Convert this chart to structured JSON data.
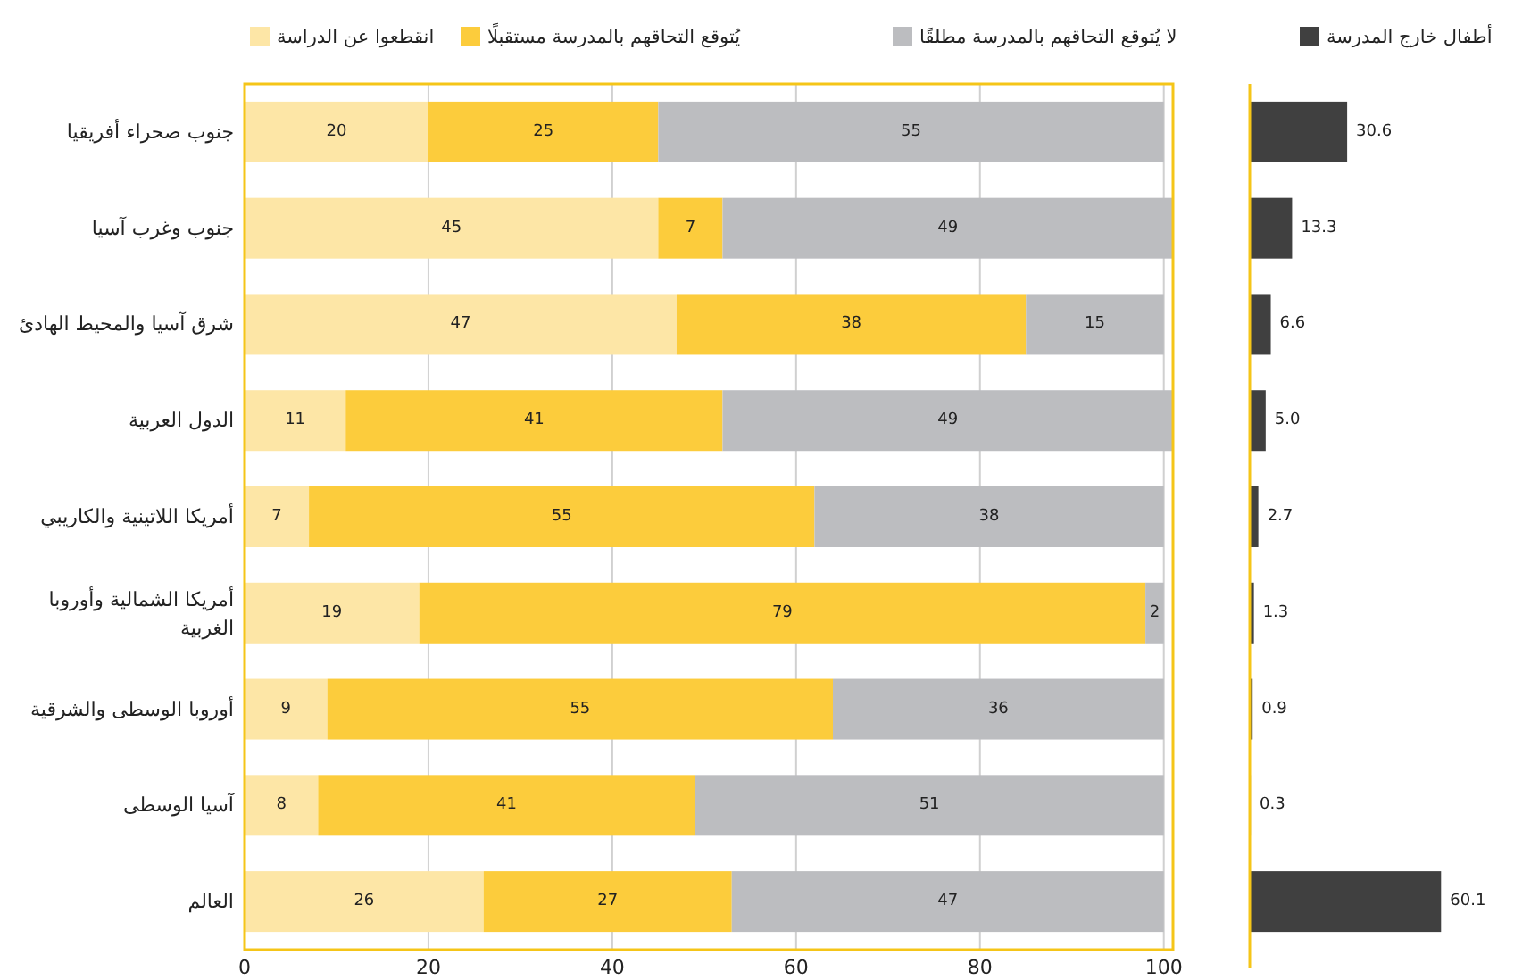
{
  "chart_data": [
    {
      "type": "bar",
      "orientation": "horizontal",
      "stacked": true,
      "categories": [
        "جنوب صحراء أفريقيا",
        "جنوب وغرب آسيا",
        "شرق آسيا والمحيط الهادئ",
        "الدول العربية",
        "أمريكا اللاتينية والكاريبي",
        "أمريكا الشمالية وأوروبا الغربية",
        "أوروبا الوسطى والشرقية",
        "آسيا الوسطى",
        "العالم"
      ],
      "series": [
        {
          "name": "انقطعوا عن الدراسة",
          "color": "#fde6a6",
          "values": [
            20,
            45,
            47,
            11,
            7,
            19,
            9,
            8,
            26
          ]
        },
        {
          "name": "يُتوقع التحاقهم بالمدرسة مستقبلًا",
          "color": "#fccc3c",
          "values": [
            25,
            7,
            38,
            41,
            55,
            79,
            55,
            41,
            27
          ]
        },
        {
          "name": "لا يُتوقع التحاقهم بالمدرسة مطلقًا",
          "color": "#bcbdc0",
          "values": [
            55,
            49,
            15,
            49,
            38,
            2,
            36,
            51,
            47
          ]
        }
      ],
      "xlim": [
        0,
        101
      ],
      "xticks": [
        0,
        20,
        40,
        60,
        80,
        100
      ],
      "grid": "x",
      "legend": "top",
      "data_labels": true
    },
    {
      "type": "bar",
      "orientation": "horizontal",
      "categories": [
        null,
        null,
        null,
        null,
        null,
        null,
        null,
        null,
        null
      ],
      "series": [
        {
          "name": "أطفال خارج المدرسة",
          "color": "#404040",
          "values": [
            30.6,
            13.3,
            6.6,
            5.0,
            2.7,
            1.3,
            0.9,
            0.3,
            60.1
          ],
          "value_labels": [
            "30.6",
            "13.3",
            "6.6",
            "5.0",
            "2.7",
            "1.3",
            "0.9",
            "0.3",
            "60.1"
          ]
        }
      ],
      "legend": "top"
    }
  ]
}
